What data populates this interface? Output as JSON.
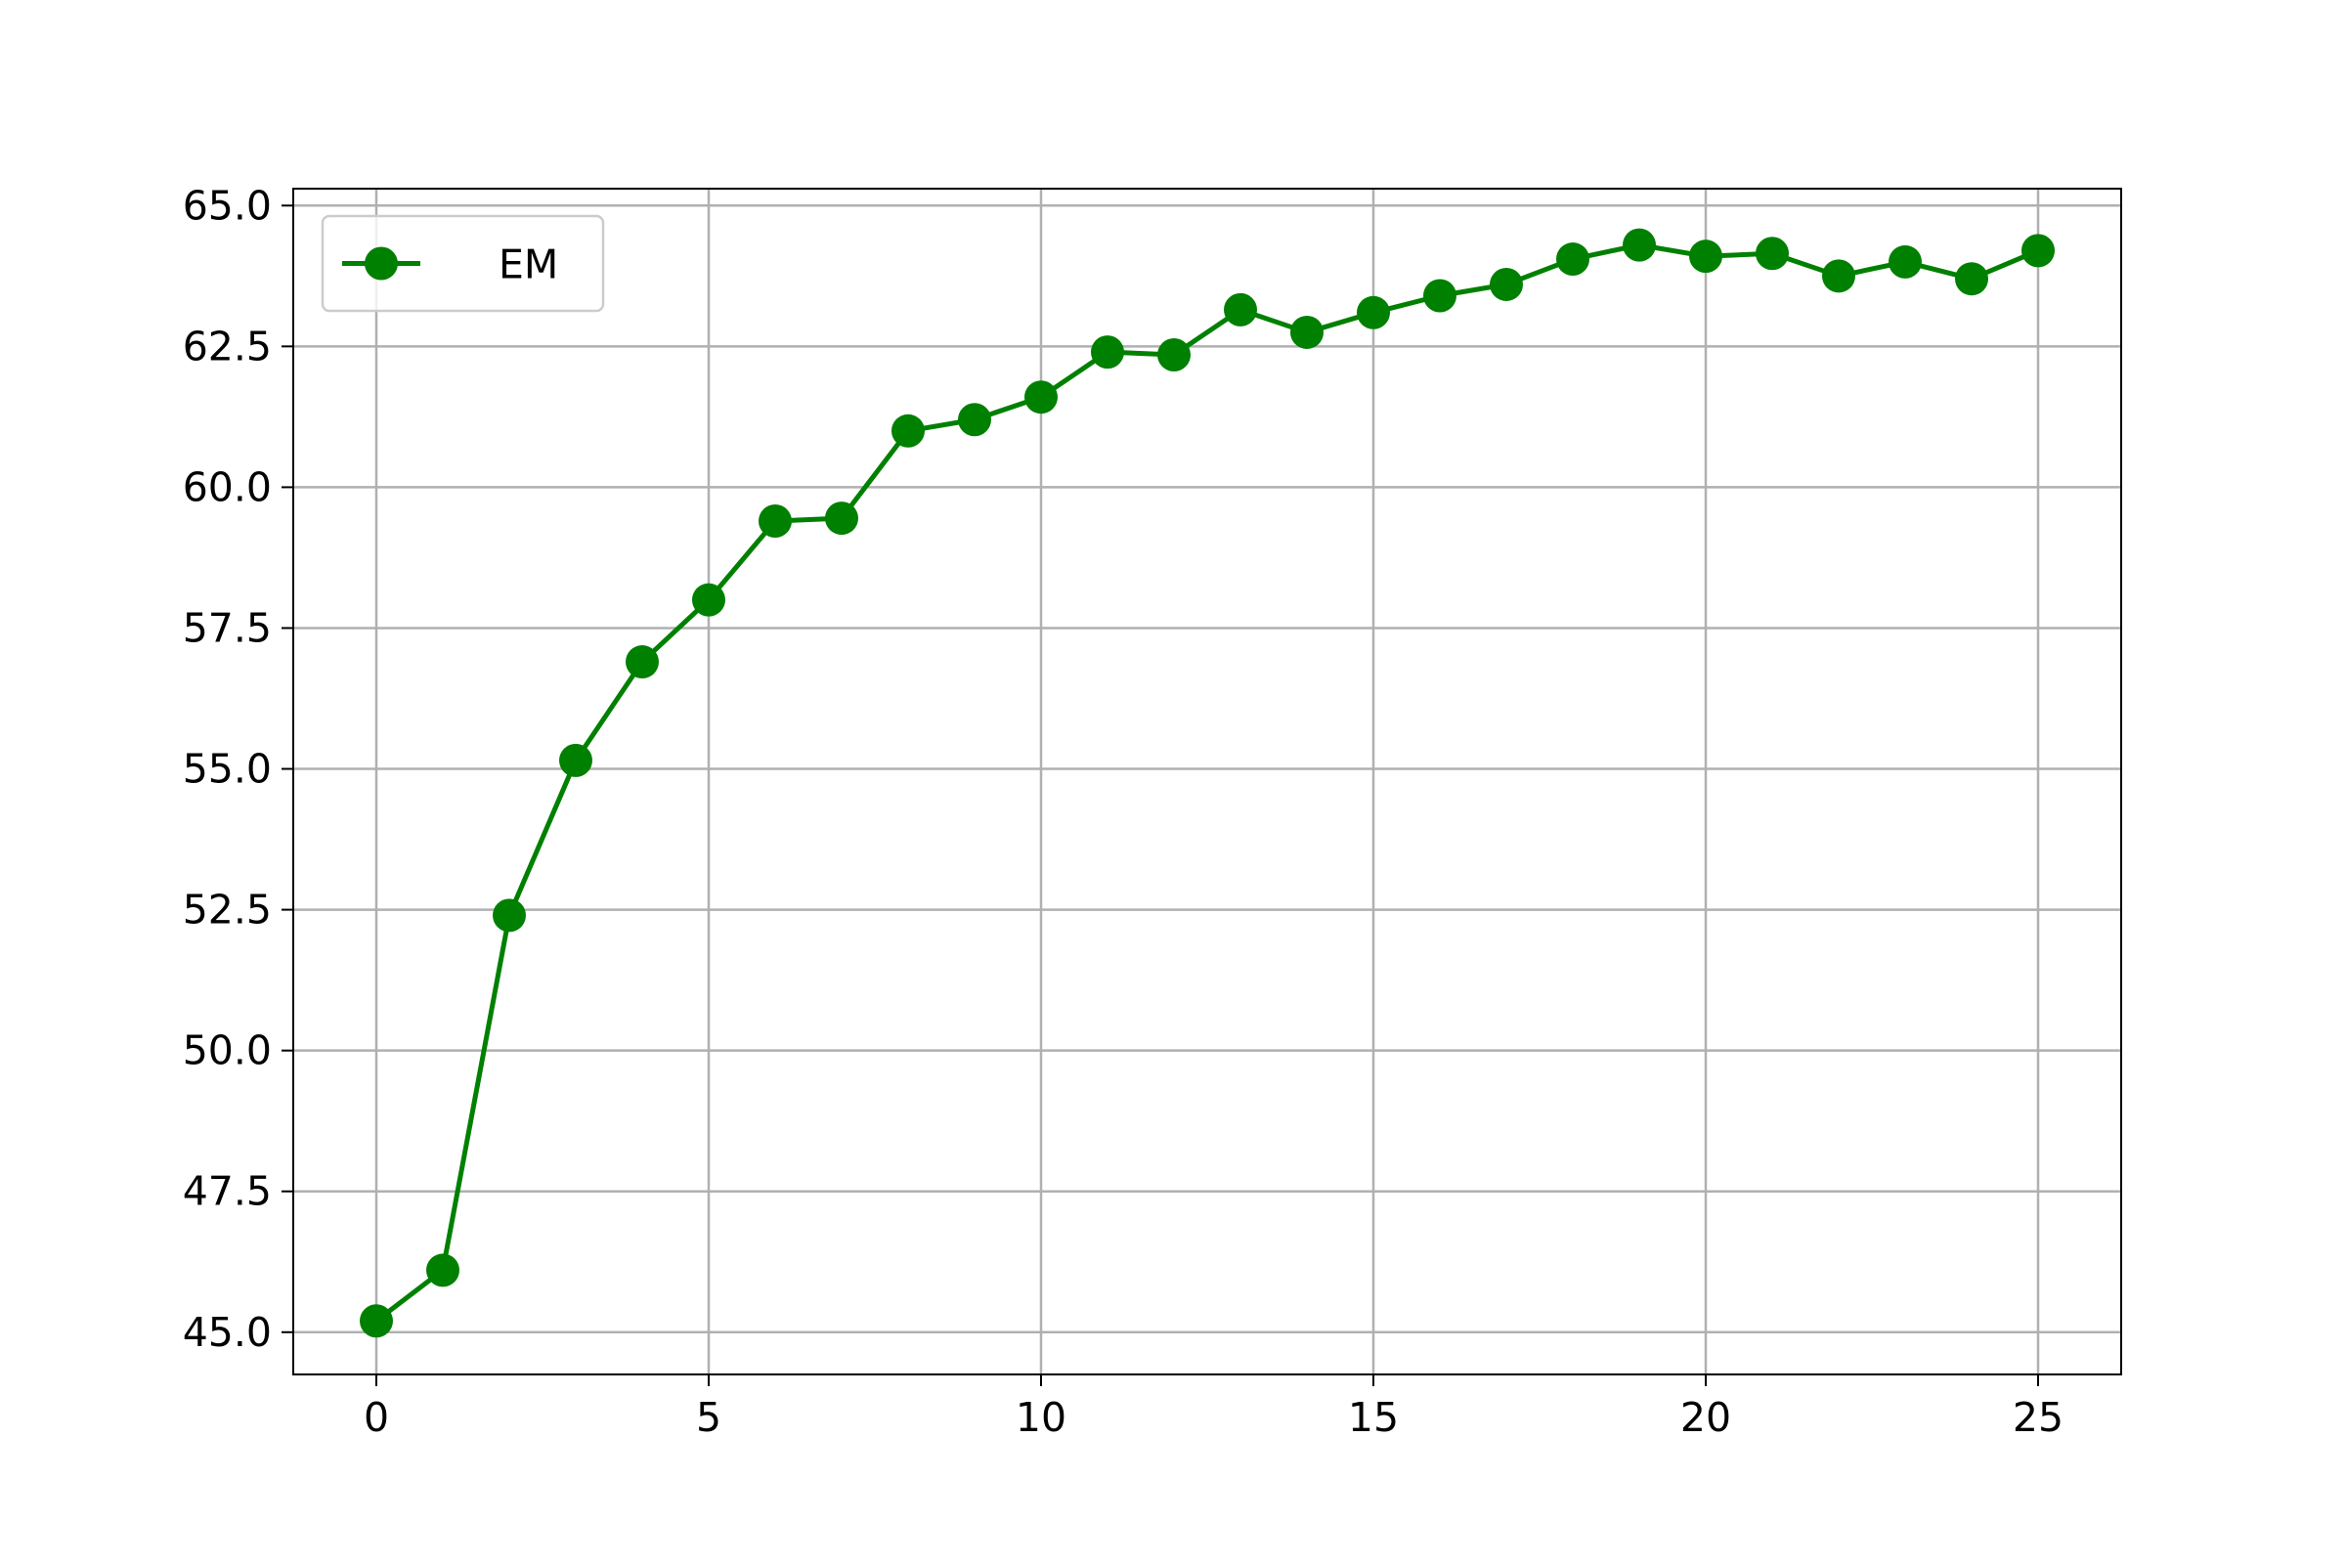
{
  "chart_data": {
    "type": "line",
    "title": "",
    "xlabel": "",
    "ylabel": "",
    "xlim": [
      -1.25,
      26.25
    ],
    "ylim": [
      44.25,
      65.3
    ],
    "xticks": [
      0,
      5,
      10,
      15,
      20,
      25
    ],
    "xtick_labels": [
      "0",
      "5",
      "10",
      "15",
      "20",
      "25"
    ],
    "yticks": [
      45.0,
      47.5,
      50.0,
      52.5,
      55.0,
      57.5,
      60.0,
      62.5,
      65.0
    ],
    "ytick_labels": [
      "45.0",
      "47.5",
      "50.0",
      "52.5",
      "55.0",
      "57.5",
      "60.0",
      "62.5",
      "65.0"
    ],
    "grid": true,
    "legend": {
      "position": "top-left"
    },
    "series": [
      {
        "name": "EM",
        "color": "#008000",
        "marker": "circle",
        "x": [
          0,
          1,
          2,
          3,
          4,
          5,
          6,
          7,
          8,
          9,
          10,
          11,
          12,
          13,
          14,
          15,
          16,
          17,
          18,
          19,
          20,
          21,
          22,
          23,
          24,
          25
        ],
        "y": [
          45.2,
          46.1,
          52.4,
          55.15,
          56.9,
          58.0,
          59.4,
          59.45,
          61.0,
          61.2,
          61.6,
          62.4,
          62.35,
          63.15,
          62.75,
          63.1,
          63.4,
          63.6,
          64.05,
          64.3,
          64.1,
          64.15,
          63.75,
          64.0,
          63.7,
          64.2
        ]
      }
    ]
  }
}
